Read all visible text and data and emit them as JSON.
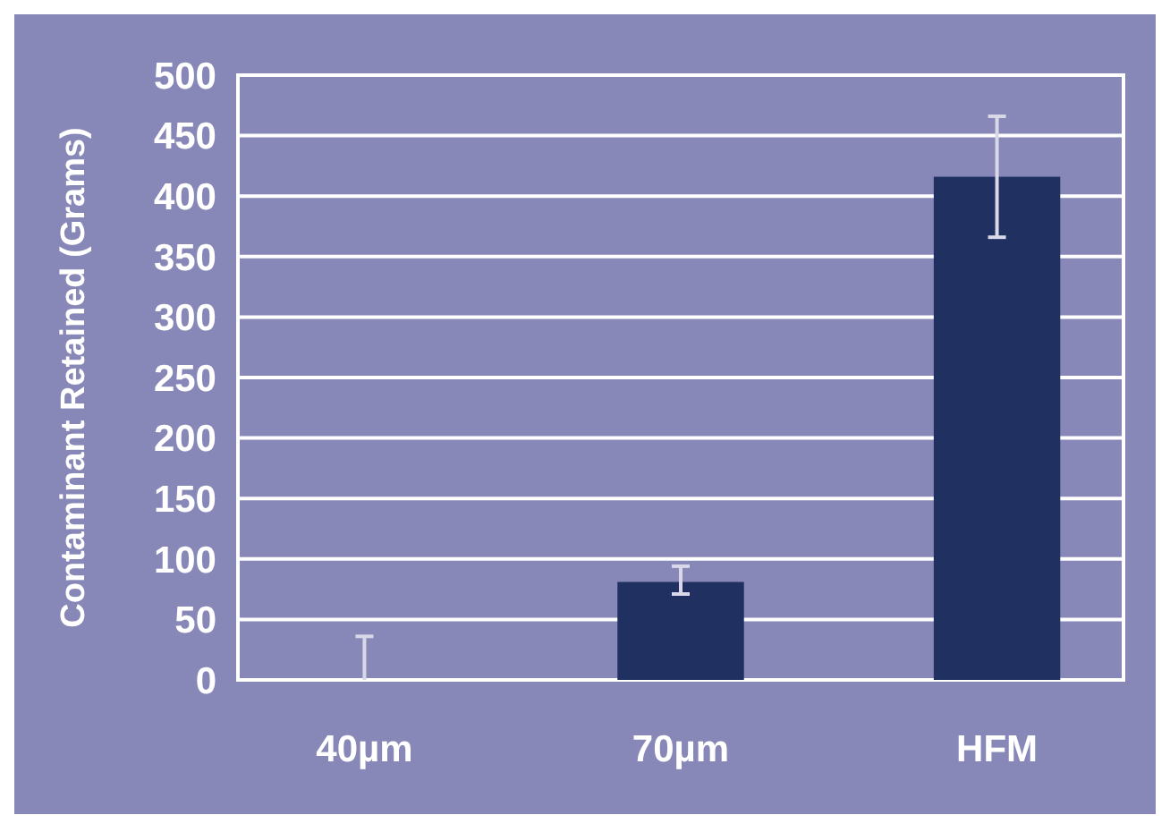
{
  "chart_data": {
    "type": "bar",
    "ylabel": "Contaminant Retained (Grams)",
    "categories": [
      "40µm",
      "70µm",
      "HFM"
    ],
    "values": [
      0,
      81,
      416
    ],
    "errors": [
      [
        0,
        36
      ],
      [
        71,
        94
      ],
      [
        366,
        466
      ]
    ],
    "color": "#1f3061",
    "ylim": [
      0,
      500
    ],
    "yticks": [
      0,
      50,
      100,
      150,
      200,
      250,
      300,
      350,
      400,
      450,
      500
    ],
    "grid": "y"
  }
}
